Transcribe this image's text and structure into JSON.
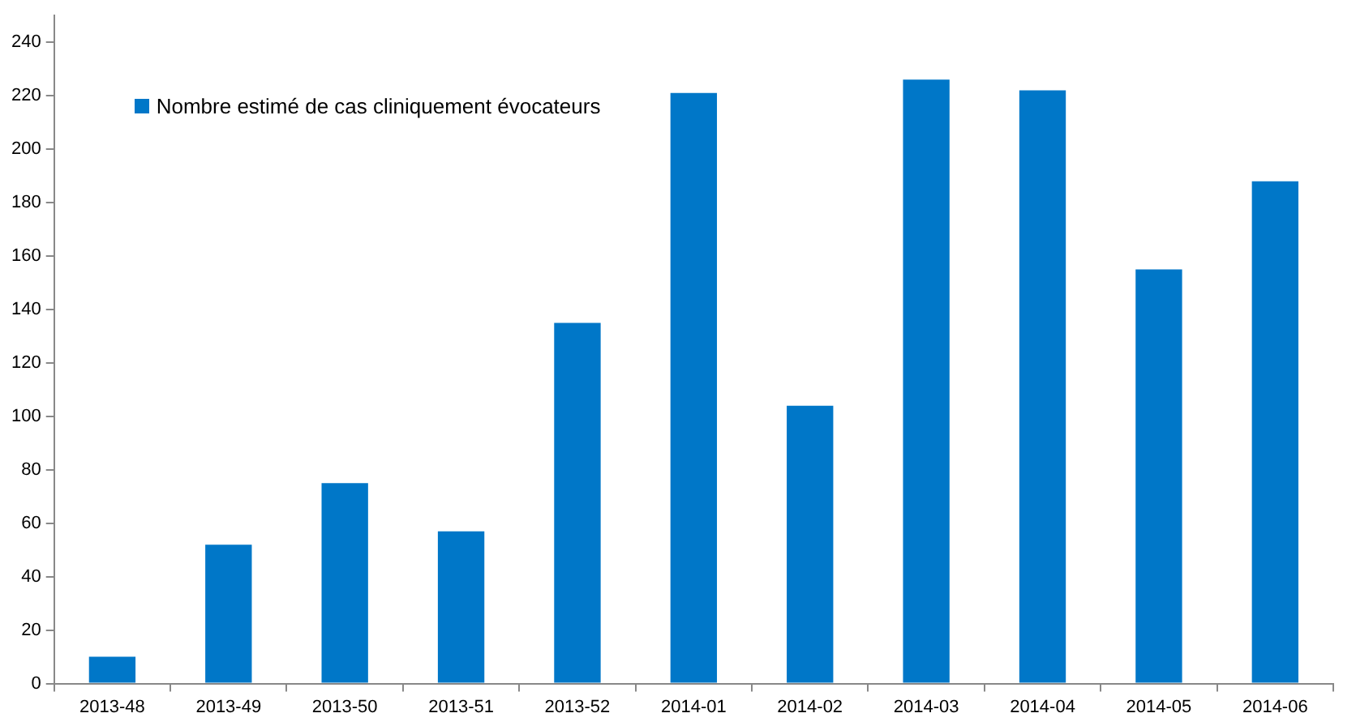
{
  "chart_data": {
    "type": "bar",
    "categories": [
      "2013-48",
      "2013-49",
      "2013-50",
      "2013-51",
      "2013-52",
      "2014-01",
      "2014-02",
      "2014-03",
      "2014-04",
      "2014-05",
      "2014-06"
    ],
    "series": [
      {
        "name": "Nombre estimé de cas cliniquement évocateurs",
        "color": "#0077c8",
        "values": [
          10,
          52,
          75,
          57,
          135,
          221,
          104,
          226,
          222,
          155,
          188
        ]
      }
    ],
    "ylim": [
      0,
      250
    ],
    "yticks": [
      0,
      20,
      40,
      60,
      80,
      100,
      120,
      140,
      160,
      180,
      200,
      220,
      240
    ],
    "grid": false,
    "legend": "top left"
  }
}
